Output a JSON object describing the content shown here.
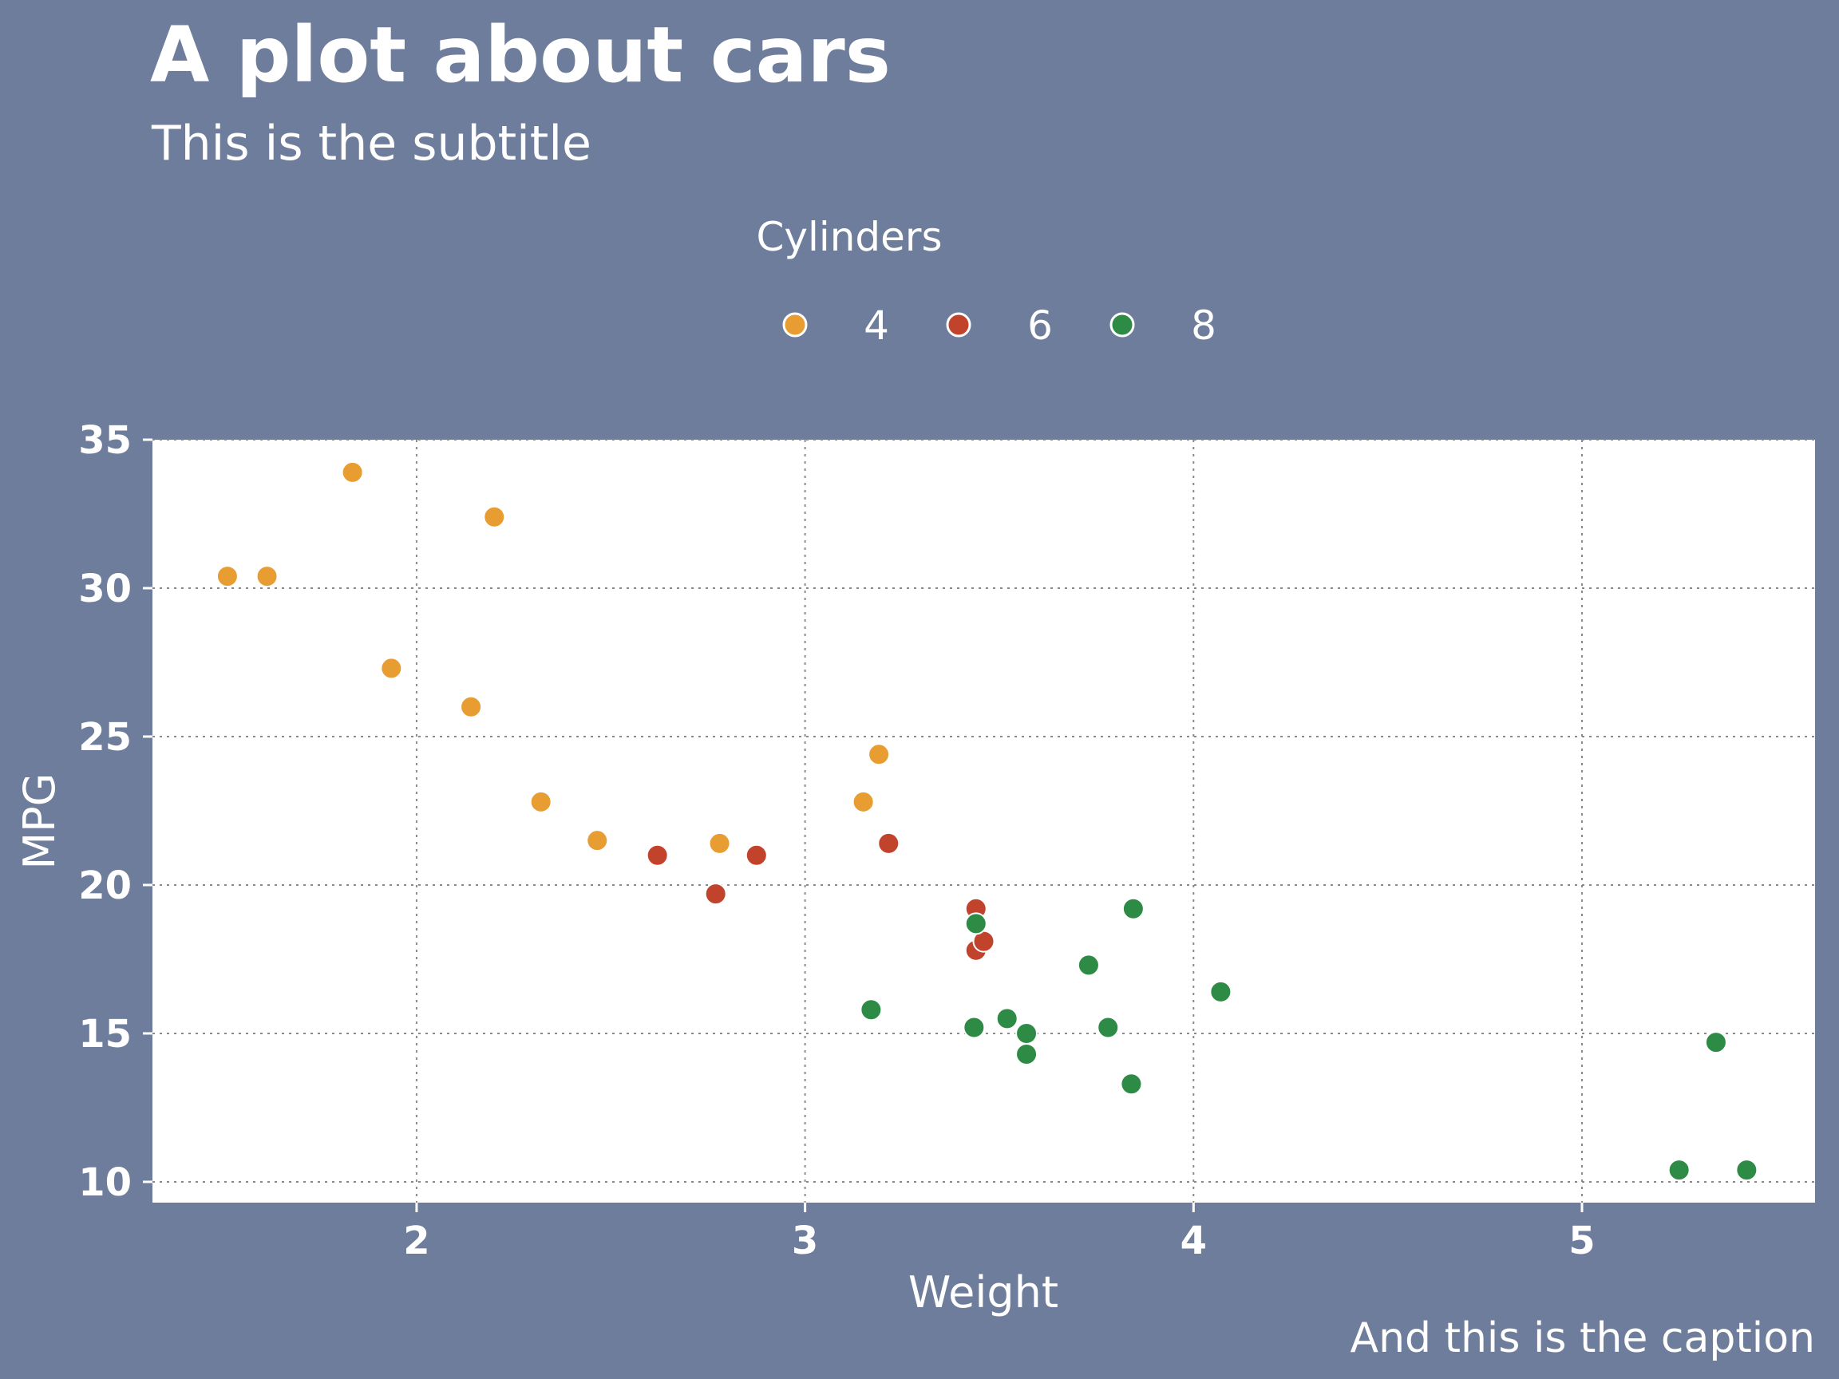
{
  "chart_data": {
    "type": "scatter",
    "title": "A plot about cars",
    "subtitle": "This is the subtitle",
    "caption": "And this is the caption",
    "xlabel": "Weight",
    "ylabel": "MPG",
    "xlim": [
      1.32,
      5.6
    ],
    "ylim": [
      9.3,
      35
    ],
    "xticks": [
      2,
      3,
      4,
      5
    ],
    "yticks": [
      10,
      15,
      20,
      25,
      30,
      35
    ],
    "grid": true,
    "legend": {
      "title": "Cylinders",
      "placement": "top-center",
      "entries": [
        {
          "label": "4",
          "color": "#e89d33"
        },
        {
          "label": "6",
          "color": "#c1432b"
        },
        {
          "label": "8",
          "color": "#2e8b45"
        }
      ]
    },
    "series": [
      {
        "name": "4",
        "color": "#e89d33",
        "points": [
          [
            1.513,
            30.4
          ],
          [
            1.615,
            30.4
          ],
          [
            1.835,
            33.9
          ],
          [
            1.935,
            27.3
          ],
          [
            2.14,
            26.0
          ],
          [
            2.2,
            32.4
          ],
          [
            2.32,
            22.8
          ],
          [
            2.465,
            21.5
          ],
          [
            2.78,
            21.4
          ],
          [
            3.15,
            22.8
          ],
          [
            3.19,
            24.4
          ]
        ]
      },
      {
        "name": "6",
        "color": "#c1432b",
        "points": [
          [
            2.62,
            21.0
          ],
          [
            2.77,
            19.7
          ],
          [
            2.875,
            21.0
          ],
          [
            3.215,
            21.4
          ],
          [
            3.44,
            19.2
          ],
          [
            3.44,
            17.8
          ],
          [
            3.46,
            18.1
          ]
        ]
      },
      {
        "name": "8",
        "color": "#2e8b45",
        "points": [
          [
            3.17,
            15.8
          ],
          [
            3.435,
            15.2
          ],
          [
            3.44,
            18.7
          ],
          [
            3.52,
            15.5
          ],
          [
            3.57,
            15.0
          ],
          [
            3.57,
            14.3
          ],
          [
            3.73,
            17.3
          ],
          [
            3.78,
            15.2
          ],
          [
            3.84,
            13.3
          ],
          [
            3.845,
            19.2
          ],
          [
            4.07,
            16.4
          ],
          [
            5.25,
            10.4
          ],
          [
            5.345,
            14.7
          ],
          [
            5.424,
            10.4
          ]
        ]
      }
    ]
  }
}
